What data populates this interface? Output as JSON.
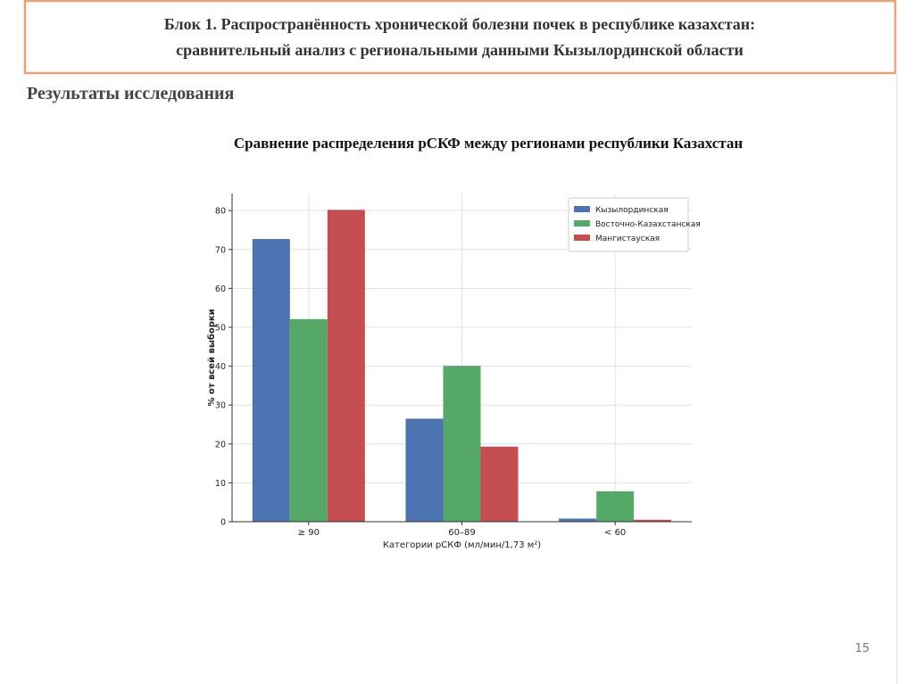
{
  "header": {
    "title_line1": "Блок 1. Распространённость хронической болезни почек в республике казахстан:",
    "title_line2": "сравнительный анализ с региональными данными Кызылординской области"
  },
  "section": "Результаты исследования",
  "page_number": "15",
  "chart_data": {
    "type": "bar",
    "title": "Сравнение распределения рСКФ между регионами республики Казахстан",
    "categories": [
      "≥ 90",
      "60–89",
      "< 60"
    ],
    "series": [
      {
        "name": "Кызылординская",
        "color": "#4c72b0",
        "values": [
          72.7,
          26.5,
          0.8
        ]
      },
      {
        "name": "Восточно-Казахстанская",
        "color": "#55a868",
        "values": [
          52.1,
          40.1,
          7.8
        ]
      },
      {
        "name": "Мангистауская",
        "color": "#c44e52",
        "values": [
          80.2,
          19.3,
          0.5
        ]
      }
    ],
    "ylabel": "% от всей выборки",
    "xlabel": "Категории рСКФ (мл/мин/1,73 м²)",
    "ylim": [
      0,
      84.4
    ],
    "yticks": [
      0,
      10,
      20,
      30,
      40,
      50,
      60,
      70,
      80
    ],
    "grid": true,
    "legend": "upper right"
  }
}
